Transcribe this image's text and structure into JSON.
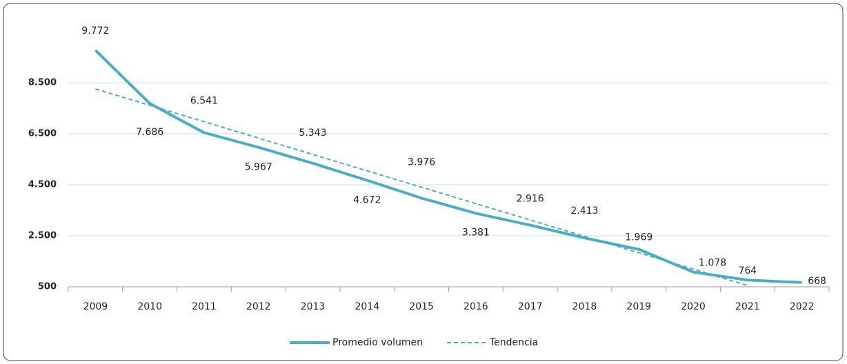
{
  "chart_data": {
    "type": "line",
    "categories": [
      "2009",
      "2010",
      "2011",
      "2012",
      "2013",
      "2014",
      "2015",
      "2016",
      "2017",
      "2018",
      "2019",
      "2020",
      "2021",
      "2022"
    ],
    "series": [
      {
        "name": "Promedio volumen",
        "color": "#4bacc6",
        "dash": false,
        "values": [
          9772,
          7686,
          6541,
          5967,
          5343,
          4672,
          3976,
          3381,
          2916,
          2413,
          1969,
          1078,
          764,
          668
        ],
        "value_labels": [
          "9.772",
          "7.686",
          "6.541",
          "5.967",
          "5.343",
          "4.672",
          "3.976",
          "3.381",
          "2.916",
          "2.413",
          "1.969",
          "1.078",
          "764",
          "668"
        ]
      },
      {
        "name": "Tendencia",
        "color": "#4bacc6",
        "dash": true,
        "values": [
          8256,
          7614,
          6972,
          6330,
          5688,
          5046,
          4404,
          3761,
          3119,
          2477,
          1835,
          1193,
          551,
          null
        ]
      }
    ],
    "ylim": [
      500,
      10500
    ],
    "yticks": [
      500,
      {
        "value": 2500,
        "label": "2.500"
      },
      {
        "value": 4500,
        "label": "4.500"
      },
      {
        "value": 6500,
        "label": "6.500"
      },
      {
        "value": 8500,
        "label": "8.500"
      }
    ],
    "grid": true,
    "legend": "bottom"
  }
}
